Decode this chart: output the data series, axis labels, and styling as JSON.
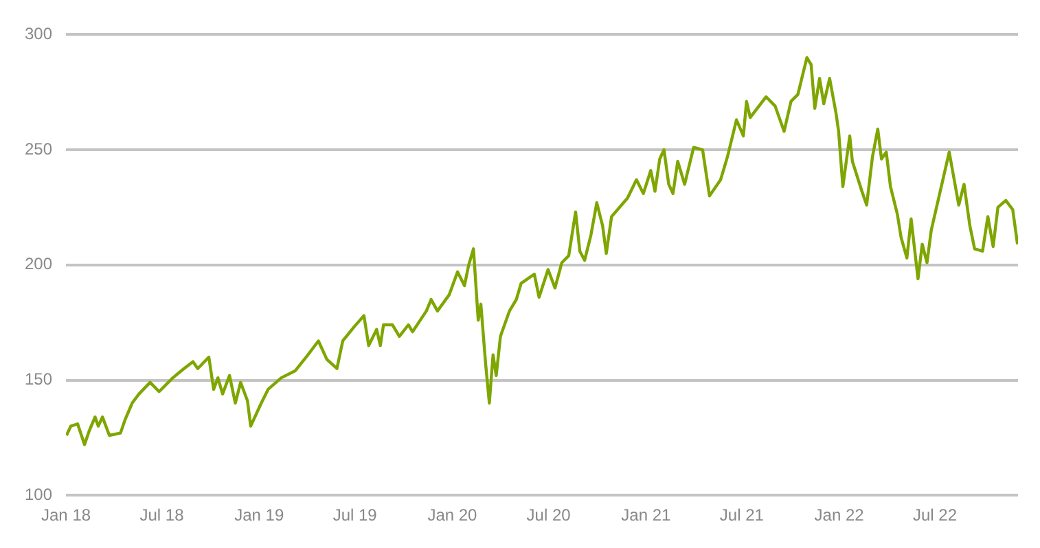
{
  "chart_data": {
    "type": "line",
    "x": [
      "2018-01-02",
      "2018-01-10",
      "2018-01-23",
      "2018-02-05",
      "2018-02-14",
      "2018-02-25",
      "2018-03-03",
      "2018-03-11",
      "2018-03-24",
      "2018-04-14",
      "2018-04-23",
      "2018-05-06",
      "2018-05-19",
      "2018-06-09",
      "2018-06-26",
      "2018-07-22",
      "2018-08-12",
      "2018-08-29",
      "2018-09-07",
      "2018-09-28",
      "2018-10-07",
      "2018-10-15",
      "2018-10-24",
      "2018-11-06",
      "2018-11-17",
      "2018-11-27",
      "2018-12-10",
      "2018-12-16",
      "2019-01-05",
      "2019-01-18",
      "2019-02-12",
      "2019-03-10",
      "2019-03-31",
      "2019-04-23",
      "2019-05-09",
      "2019-05-28",
      "2019-06-08",
      "2019-06-29",
      "2019-07-18",
      "2019-07-27",
      "2019-08-11",
      "2019-08-18",
      "2019-08-24",
      "2019-09-10",
      "2019-09-23",
      "2019-10-10",
      "2019-10-18",
      "2019-11-13",
      "2019-11-22",
      "2019-12-04",
      "2019-12-26",
      "2020-01-11",
      "2020-01-24",
      "2020-02-01",
      "2020-02-10",
      "2020-02-19",
      "2020-02-24",
      "2020-03-04",
      "2020-03-11",
      "2020-03-18",
      "2020-03-24",
      "2020-04-01",
      "2020-04-18",
      "2020-05-01",
      "2020-05-10",
      "2020-06-04",
      "2020-06-13",
      "2020-06-30",
      "2020-07-13",
      "2020-07-26",
      "2020-08-08",
      "2020-08-21",
      "2020-08-29",
      "2020-09-07",
      "2020-09-19",
      "2020-09-30",
      "2020-10-11",
      "2020-10-18",
      "2020-10-28",
      "2020-11-27",
      "2020-12-14",
      "2020-12-27",
      "2021-01-10",
      "2021-01-18",
      "2021-01-27",
      "2021-02-04",
      "2021-02-13",
      "2021-02-21",
      "2021-03-02",
      "2021-03-15",
      "2021-04-01",
      "2021-04-18",
      "2021-05-01",
      "2021-05-22",
      "2021-06-04",
      "2021-06-21",
      "2021-07-04",
      "2021-07-10",
      "2021-07-17",
      "2021-08-16",
      "2021-09-02",
      "2021-09-19",
      "2021-10-02",
      "2021-10-15",
      "2021-11-01",
      "2021-11-09",
      "2021-11-16",
      "2021-11-25",
      "2021-12-03",
      "2021-12-14",
      "2021-12-26",
      "2021-12-31",
      "2022-01-08",
      "2022-01-21",
      "2022-01-26",
      "2022-02-13",
      "2022-02-22",
      "2022-03-05",
      "2022-03-15",
      "2022-03-22",
      "2022-03-31",
      "2022-04-08",
      "2022-04-21",
      "2022-04-28",
      "2022-05-09",
      "2022-05-17",
      "2022-05-30",
      "2022-06-07",
      "2022-06-16",
      "2022-06-24",
      "2022-07-03",
      "2022-07-16",
      "2022-07-28",
      "2022-08-15",
      "2022-08-25",
      "2022-09-05",
      "2022-09-14",
      "2022-09-29",
      "2022-10-09",
      "2022-10-19",
      "2022-10-28",
      "2022-11-12",
      "2022-11-25",
      "2022-12-04"
    ],
    "series": [
      {
        "color": "#7fa600",
        "values": [
          126,
          130,
          131,
          122,
          128,
          134,
          130,
          134,
          126,
          127,
          133,
          140,
          144,
          149,
          145,
          151,
          155,
          158,
          155,
          160,
          146,
          151,
          144,
          152,
          140,
          149,
          141,
          130,
          140,
          146,
          151,
          154,
          160,
          167,
          159,
          155,
          167,
          173,
          178,
          165,
          172,
          165,
          174,
          174,
          169,
          174,
          171,
          180,
          185,
          180,
          187,
          197,
          191,
          200,
          207,
          176,
          183,
          157,
          140,
          161,
          152,
          169,
          180,
          185,
          192,
          196,
          186,
          198,
          190,
          201,
          204,
          223,
          206,
          202,
          213,
          227,
          217,
          205,
          221,
          229,
          237,
          231,
          241,
          232,
          246,
          250,
          235,
          231,
          245,
          235,
          251,
          250,
          230,
          237,
          247,
          263,
          256,
          271,
          264,
          273,
          269,
          258,
          271,
          274,
          290,
          287,
          268,
          281,
          270,
          281,
          266,
          258,
          234,
          256,
          245,
          232,
          226,
          247,
          259,
          246,
          249,
          234,
          222,
          212,
          203,
          220,
          194,
          209,
          201,
          215,
          224,
          237,
          249,
          226,
          235,
          217,
          207,
          206,
          221,
          208,
          225,
          228,
          224,
          209
        ]
      }
    ],
    "xlim": [
      "2018-01-01",
      "2022-12-05"
    ],
    "xticks": [
      {
        "value": "2018-01-01",
        "label": "Jan 18"
      },
      {
        "value": "2018-07-01",
        "label": "Jul 18"
      },
      {
        "value": "2019-01-01",
        "label": "Jan 19"
      },
      {
        "value": "2019-07-01",
        "label": "Jul 19"
      },
      {
        "value": "2020-01-01",
        "label": "Jan 20"
      },
      {
        "value": "2020-07-01",
        "label": "Jul 20"
      },
      {
        "value": "2021-01-01",
        "label": "Jan 21"
      },
      {
        "value": "2021-07-01",
        "label": "Jul 21"
      },
      {
        "value": "2022-01-01",
        "label": "Jan 22"
      },
      {
        "value": "2022-07-01",
        "label": "Jul 22"
      }
    ],
    "ylim": [
      100,
      300
    ],
    "yticks": [
      100,
      150,
      200,
      250,
      300
    ],
    "grid": "y",
    "legend": false,
    "marker": "none",
    "line_style": "solid"
  }
}
